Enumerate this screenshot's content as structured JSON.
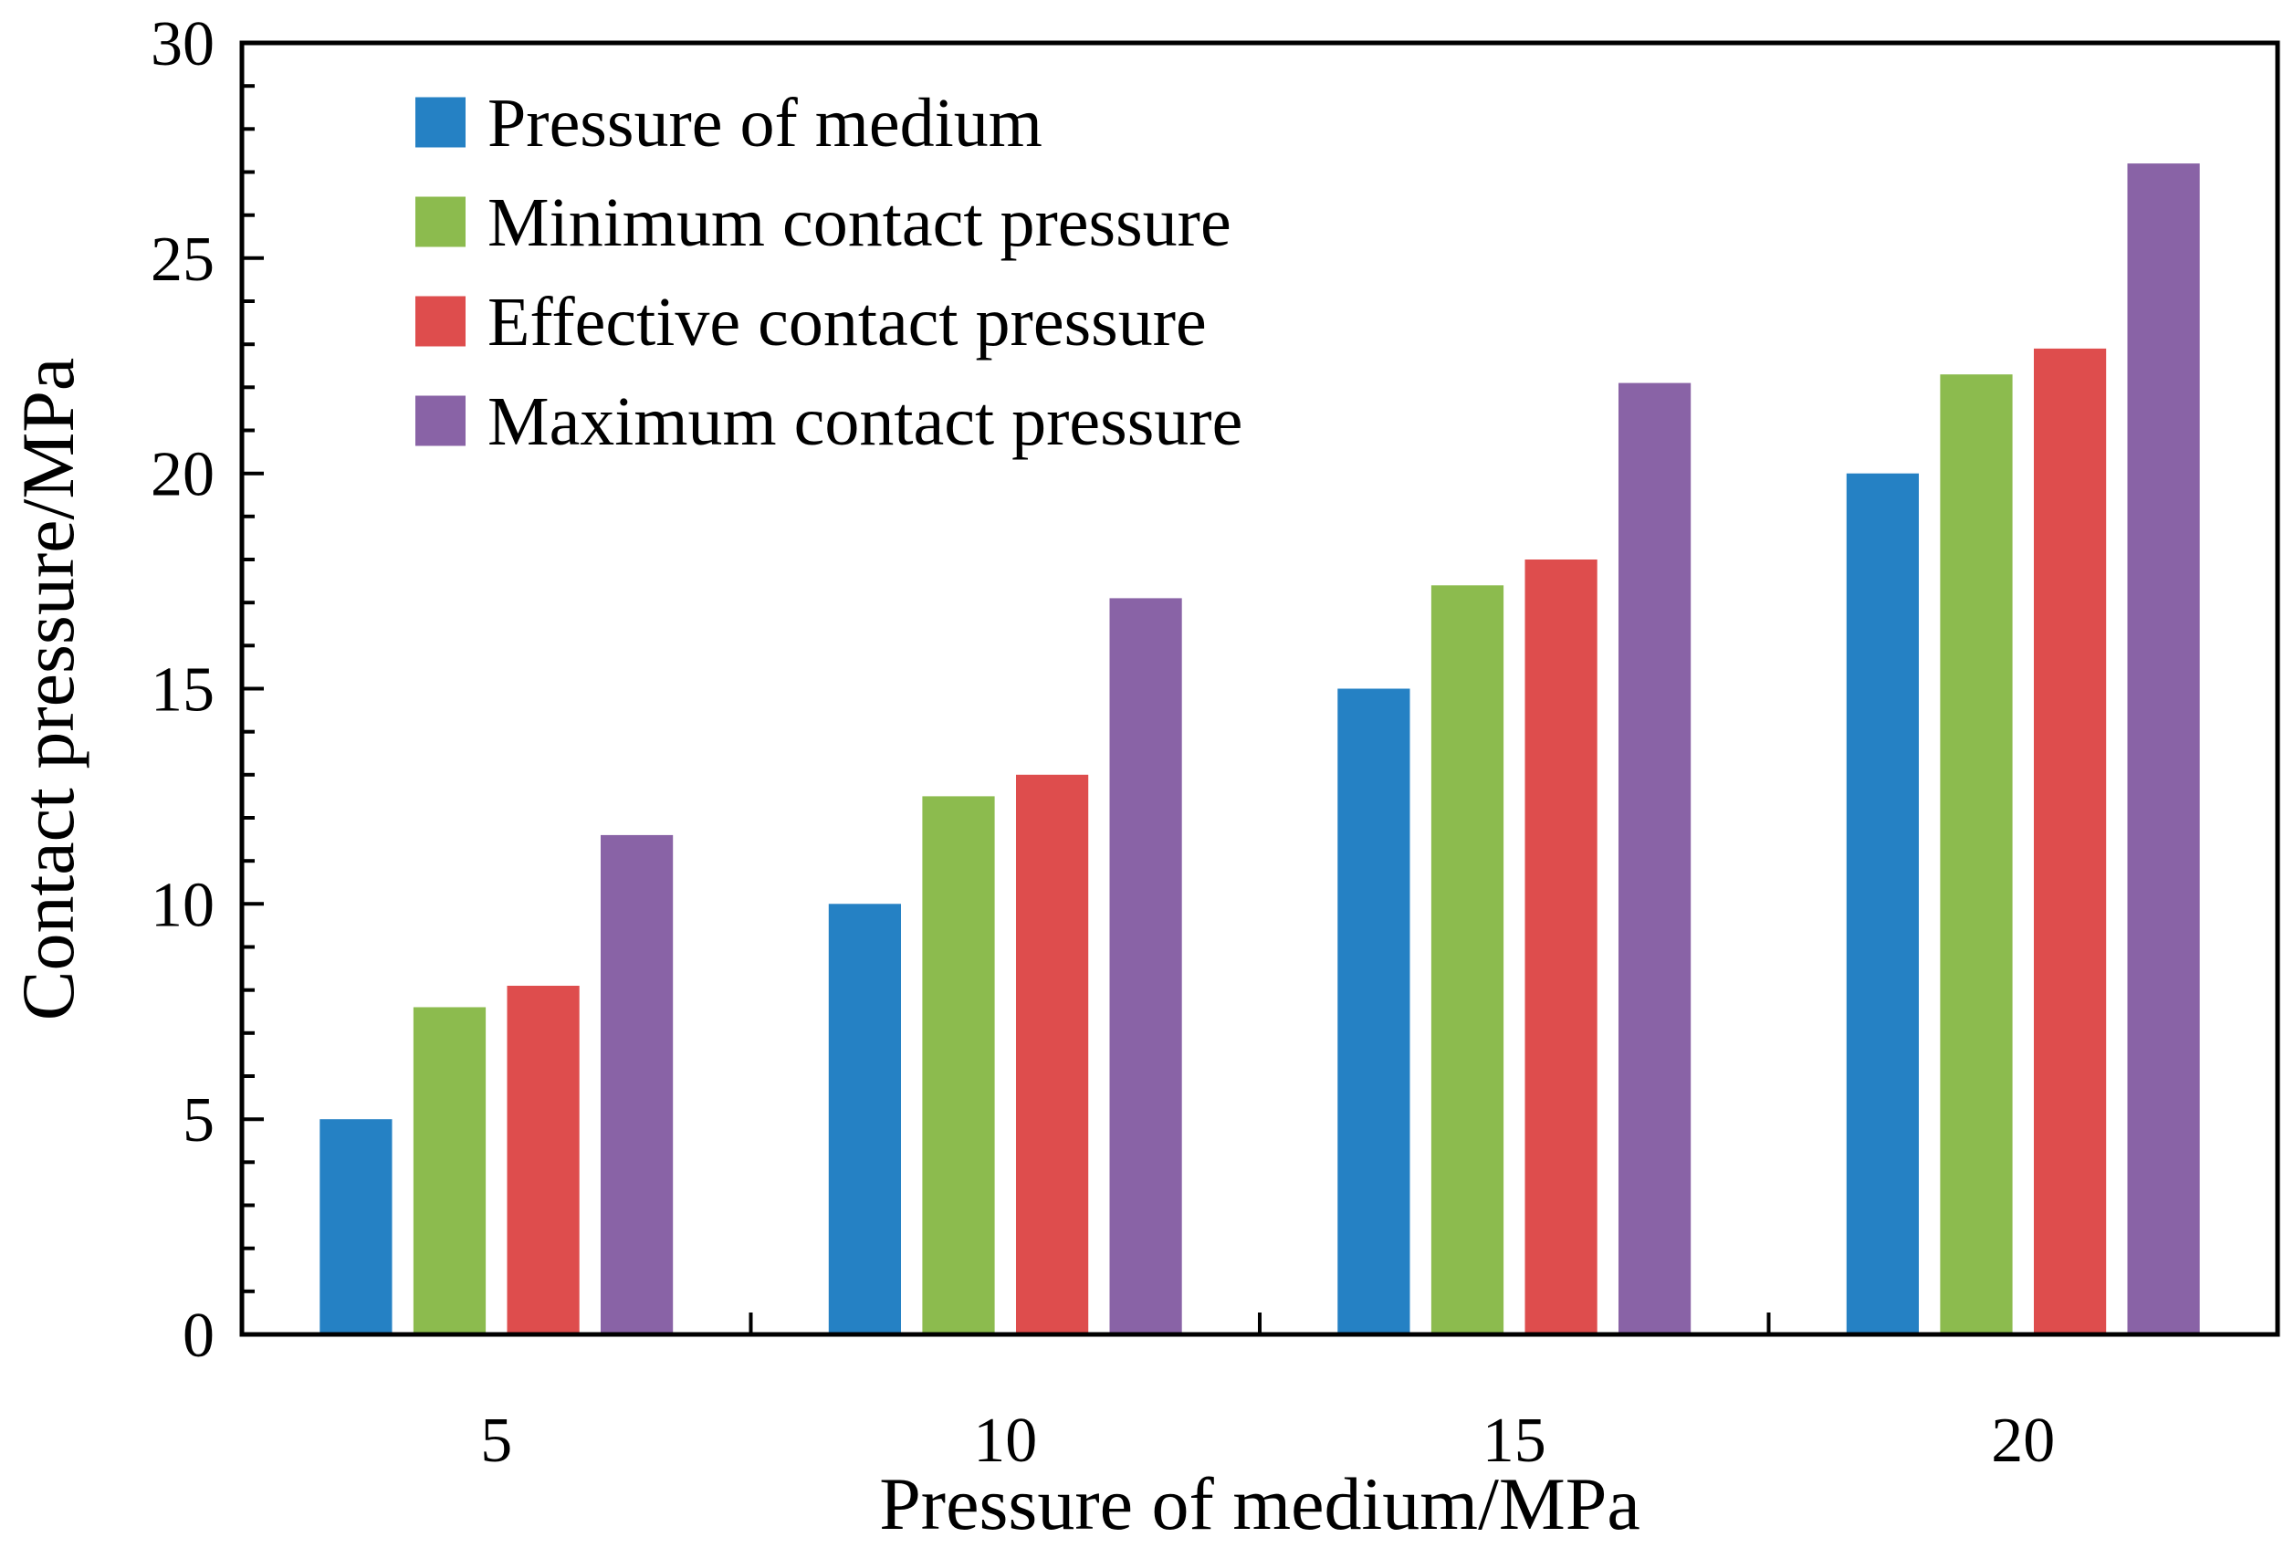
{
  "chart_data": {
    "type": "bar",
    "title": "",
    "xlabel": "Pressure of medium/MPa",
    "ylabel": "Contact pressure/MPa",
    "categories": [
      "5",
      "10",
      "15",
      "20"
    ],
    "ylim": [
      0,
      30
    ],
    "y_ticks": [
      "0",
      "5",
      "10",
      "15",
      "20",
      "25",
      "30"
    ],
    "grid": false,
    "legend_position": "top-left",
    "series": [
      {
        "name": "Pressure of medium",
        "color": "#2581c4",
        "values": [
          5.0,
          10.0,
          15.0,
          20.0
        ]
      },
      {
        "name": "Minimum contact pressure",
        "color": "#8cbb4e",
        "values": [
          7.6,
          12.5,
          17.4,
          22.3
        ]
      },
      {
        "name": "Effective contact pressure",
        "color": "#de4d4d",
        "values": [
          8.1,
          13.0,
          18.0,
          22.9
        ]
      },
      {
        "name": "Maximum contact pressure",
        "color": "#8963a6",
        "values": [
          11.6,
          17.1,
          22.1,
          27.2
        ]
      }
    ]
  }
}
